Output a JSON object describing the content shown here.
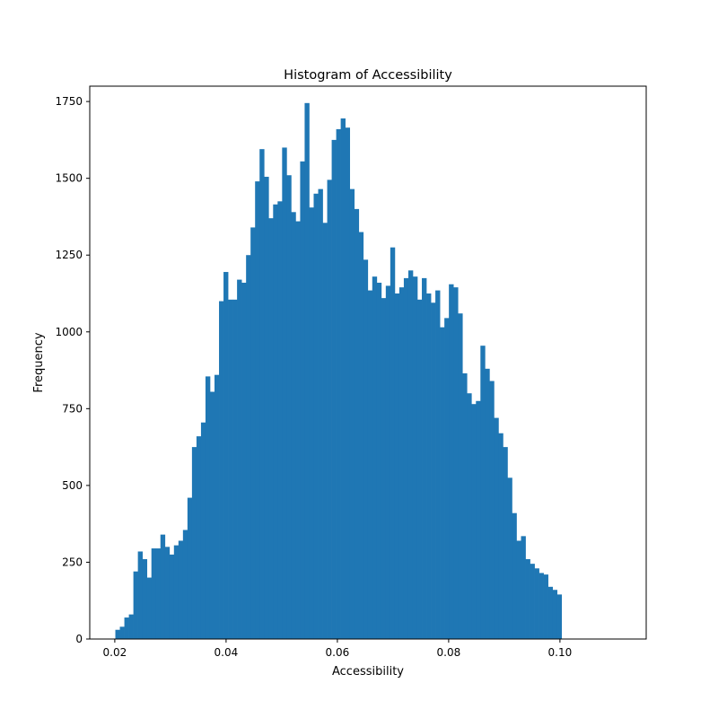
{
  "chart_data": {
    "type": "bar",
    "subtype": "histogram",
    "title": "Histogram of Accessibility",
    "xlabel": "Accessibility",
    "ylabel": "Frequency",
    "xlim": [
      0.0155,
      0.1155
    ],
    "ylim": [
      0,
      1800
    ],
    "xticks": [
      0.02,
      0.04,
      0.06,
      0.08,
      0.1
    ],
    "xtick_labels": [
      "0.02",
      "0.04",
      "0.06",
      "0.08",
      "0.10"
    ],
    "yticks": [
      0,
      250,
      500,
      750,
      1000,
      1250,
      1500,
      1750
    ],
    "ytick_labels": [
      "0",
      "250",
      "500",
      "750",
      "1000",
      "1250",
      "1500",
      "1750"
    ],
    "grid": false,
    "legend": "none",
    "bin_start": 0.0201,
    "bin_width": 0.00081,
    "values": [
      30,
      40,
      70,
      80,
      220,
      285,
      260,
      200,
      295,
      295,
      340,
      300,
      275,
      305,
      320,
      355,
      460,
      625,
      660,
      705,
      855,
      805,
      860,
      1100,
      1195,
      1105,
      1105,
      1170,
      1160,
      1250,
      1340,
      1490,
      1595,
      1505,
      1370,
      1415,
      1425,
      1600,
      1510,
      1390,
      1360,
      1555,
      1745,
      1405,
      1450,
      1465,
      1355,
      1495,
      1625,
      1660,
      1695,
      1665,
      1465,
      1400,
      1325,
      1235,
      1135,
      1180,
      1160,
      1110,
      1150,
      1275,
      1125,
      1145,
      1175,
      1200,
      1180,
      1105,
      1175,
      1125,
      1095,
      1135,
      1015,
      1045,
      1155,
      1145,
      1060,
      865,
      800,
      765,
      775,
      955,
      880,
      840,
      720,
      670,
      625,
      525,
      410,
      320,
      335,
      260,
      245,
      230,
      215,
      210,
      170,
      160,
      145
    ],
    "bar_color": "#1f77b4"
  }
}
